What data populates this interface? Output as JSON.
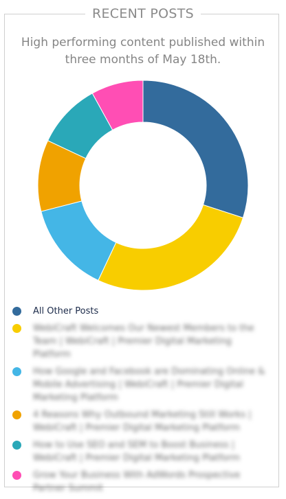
{
  "header": {
    "title": "RECENT POSTS",
    "subtitle": "High performing content published within three months of May 18th."
  },
  "chart_data": {
    "type": "pie",
    "donut": true,
    "categories": [
      "All Other Posts",
      "WebiCraft Welcomes Our Newest Members to the Team | WebiCraft | Premier Digital Marketing Platform",
      "How Google and Facebook are Dominating Online & Mobile Advertising | WebiCraft | Premier Digital Marketing Platform",
      "4 Reasons Why Outbound Marketing Still Works | WebiCraft | Premier Digital Marketing Platform",
      "How to Use SEO and SEM to Boost Business | WebiCraft | Premier Digital Marketing Platform",
      "Grow Your Business With AdWords Prospective Partner Summit"
    ],
    "values": [
      30,
      27,
      14,
      11,
      10,
      8
    ],
    "colors": [
      "#336b9c",
      "#f8cd00",
      "#44b6e6",
      "#f0a200",
      "#2aa8b8",
      "#ff4eb4"
    ],
    "legend": "bottom",
    "legend_blurred": [
      false,
      true,
      true,
      true,
      true,
      true
    ]
  }
}
